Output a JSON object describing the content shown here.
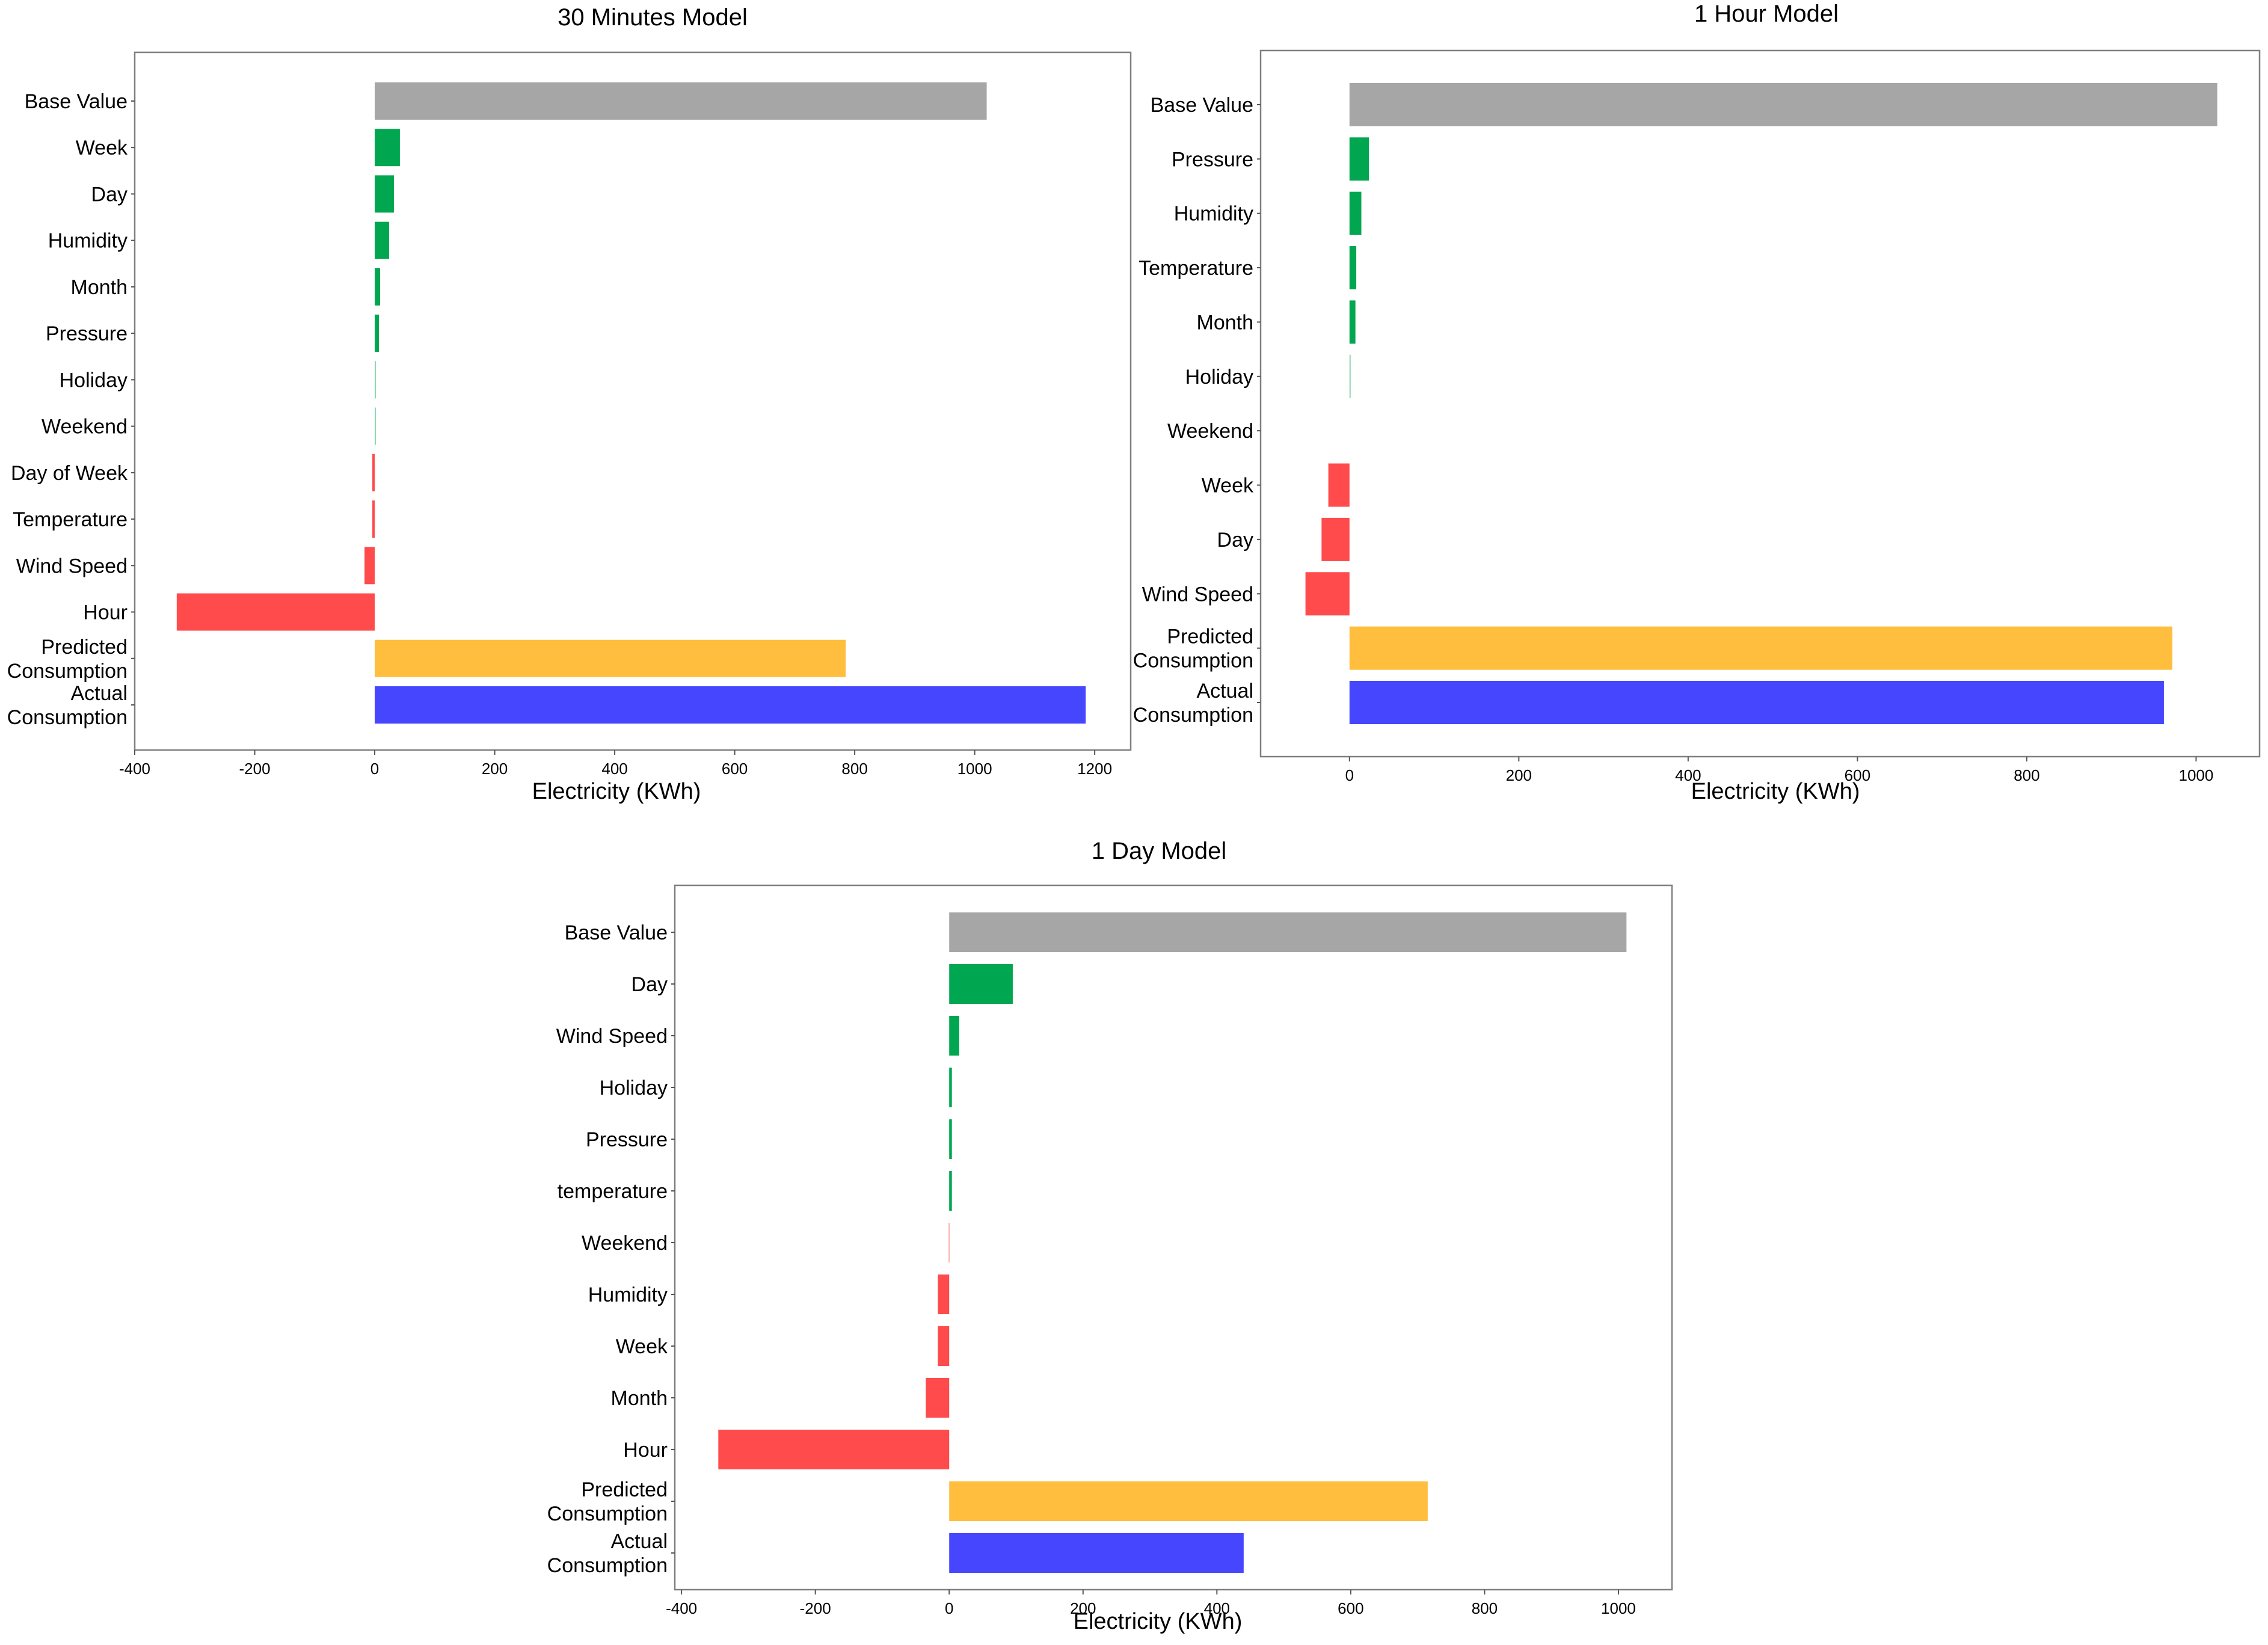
{
  "colors": {
    "base": "#a6a6a6",
    "positive": "#00a650",
    "negative": "#ff4b4b",
    "predicted": "#ffbe3d",
    "actual": "#4646ff",
    "frame": "#7f7f7f"
  },
  "chart_data": [
    {
      "type": "bar",
      "orientation": "horizontal",
      "title": "30 Minutes  Model",
      "xlabel": "Electricity (KWh)",
      "xlim": [
        -400,
        1260
      ],
      "xticks": [
        -400,
        -200,
        0,
        200,
        400,
        600,
        800,
        1000,
        1200
      ],
      "bars": [
        {
          "label": [
            "Base Value"
          ],
          "value": 1020,
          "kind": "base"
        },
        {
          "label": [
            "Week"
          ],
          "value": 42,
          "kind": "positive"
        },
        {
          "label": [
            "Day"
          ],
          "value": 32,
          "kind": "positive"
        },
        {
          "label": [
            "Humidity"
          ],
          "value": 24,
          "kind": "positive"
        },
        {
          "label": [
            "Month"
          ],
          "value": 9,
          "kind": "positive"
        },
        {
          "label": [
            "Pressure"
          ],
          "value": 7,
          "kind": "positive"
        },
        {
          "label": [
            "Holiday"
          ],
          "value": 1,
          "kind": "positive"
        },
        {
          "label": [
            "Weekend"
          ],
          "value": 1,
          "kind": "positive"
        },
        {
          "label": [
            "Day of Week"
          ],
          "value": -4,
          "kind": "negative"
        },
        {
          "label": [
            "Temperature"
          ],
          "value": -4,
          "kind": "negative"
        },
        {
          "label": [
            "Wind Speed"
          ],
          "value": -17,
          "kind": "negative"
        },
        {
          "label": [
            "Hour"
          ],
          "value": -330,
          "kind": "negative"
        },
        {
          "label": [
            "Predicted",
            "Consumption"
          ],
          "value": 785,
          "kind": "predicted"
        },
        {
          "label": [
            "Actual",
            "Consumption"
          ],
          "value": 1185,
          "kind": "actual"
        }
      ]
    },
    {
      "type": "bar",
      "orientation": "horizontal",
      "title": "1 Hour Model",
      "xlabel": "Electricity (KWh)",
      "xlim": [
        -105,
        1075
      ],
      "xticks": [
        0,
        200,
        400,
        600,
        800,
        1000
      ],
      "bars": [
        {
          "label": [
            "Base Value"
          ],
          "value": 1025,
          "kind": "base"
        },
        {
          "label": [
            "Pressure"
          ],
          "value": 23,
          "kind": "positive"
        },
        {
          "label": [
            "Humidity"
          ],
          "value": 14,
          "kind": "positive"
        },
        {
          "label": [
            "Temperature"
          ],
          "value": 8,
          "kind": "positive"
        },
        {
          "label": [
            "Month"
          ],
          "value": 7,
          "kind": "positive"
        },
        {
          "label": [
            "Holiday"
          ],
          "value": 1,
          "kind": "positive"
        },
        {
          "label": [
            "Weekend"
          ],
          "value": 0,
          "kind": "positive"
        },
        {
          "label": [
            "Week"
          ],
          "value": -25,
          "kind": "negative"
        },
        {
          "label": [
            "Day"
          ],
          "value": -33,
          "kind": "negative"
        },
        {
          "label": [
            "Wind Speed"
          ],
          "value": -52,
          "kind": "negative"
        },
        {
          "label": [
            "Predicted",
            "Consumption"
          ],
          "value": 972,
          "kind": "predicted"
        },
        {
          "label": [
            "Actual",
            "Consumption"
          ],
          "value": 962,
          "kind": "actual"
        }
      ]
    },
    {
      "type": "bar",
      "orientation": "horizontal",
      "title": "1 Day Model",
      "xlabel": "Electricity (KWh)",
      "xlim": [
        -410,
        1080
      ],
      "xticks": [
        -400,
        -200,
        0,
        200,
        400,
        600,
        800,
        1000
      ],
      "bars": [
        {
          "label": [
            "Base Value"
          ],
          "value": 1012,
          "kind": "base"
        },
        {
          "label": [
            "Day"
          ],
          "value": 95,
          "kind": "positive"
        },
        {
          "label": [
            "Wind Speed"
          ],
          "value": 15,
          "kind": "positive"
        },
        {
          "label": [
            "Holiday"
          ],
          "value": 4,
          "kind": "positive"
        },
        {
          "label": [
            "Pressure"
          ],
          "value": 4,
          "kind": "positive"
        },
        {
          "label": [
            "temperature"
          ],
          "value": 4,
          "kind": "positive"
        },
        {
          "label": [
            "Weekend"
          ],
          "value": -1,
          "kind": "negative"
        },
        {
          "label": [
            "Humidity"
          ],
          "value": -17,
          "kind": "negative"
        },
        {
          "label": [
            "Week"
          ],
          "value": -17,
          "kind": "negative"
        },
        {
          "label": [
            "Month"
          ],
          "value": -35,
          "kind": "negative"
        },
        {
          "label": [
            "Hour"
          ],
          "value": -345,
          "kind": "negative"
        },
        {
          "label": [
            "Predicted",
            "Consumption"
          ],
          "value": 715,
          "kind": "predicted"
        },
        {
          "label": [
            "Actual",
            "Consumption"
          ],
          "value": 440,
          "kind": "actual"
        }
      ]
    }
  ]
}
